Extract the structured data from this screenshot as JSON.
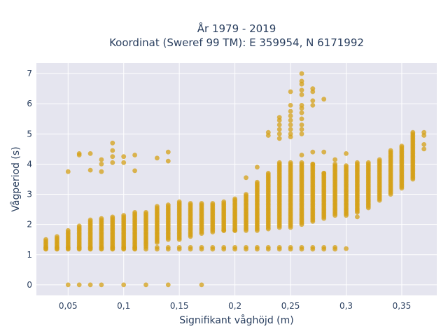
{
  "chart_data": {
    "type": "scatter",
    "title_line1": "År 1979 - 2019",
    "title_line2": "Koordinat (Sweref 99 TM): E 359954, N 6171992",
    "xlabel": "Signifikant våghöjd (m)",
    "ylabel": "Vågperiod (s)",
    "xlim": [
      0.0215,
      0.3815
    ],
    "ylim": [
      -0.35,
      7.35
    ],
    "x_ticks": [
      0.05,
      0.1,
      0.15,
      0.2,
      0.25,
      0.3,
      0.35
    ],
    "x_tick_labels": [
      "0,05",
      "0,1",
      "0,15",
      "0,2",
      "0,25",
      "0,3",
      "0,35"
    ],
    "y_ticks": [
      0,
      1,
      2,
      3,
      4,
      5,
      6,
      7
    ],
    "y_tick_labels": [
      "0",
      "1",
      "2",
      "3",
      "4",
      "5",
      "6",
      "7"
    ],
    "grid": true,
    "background": "#e5e5ef",
    "point_color": "#d4a017",
    "x_step": 0.01,
    "bands": [
      {
        "from": 0.03,
        "to": 0.29,
        "min": 1.15,
        "max": 1.25
      },
      {
        "from": 0.03,
        "to": 0.09,
        "min": 1.2,
        "max": 1.5,
        "x_offsets": [
          0,
          0.01,
          0.02,
          0.03,
          0.04,
          0.05,
          0.06
        ]
      }
    ],
    "columns": [
      {
        "x": 0.03,
        "min": 1.2,
        "max": 1.5
      },
      {
        "x": 0.04,
        "min": 1.2,
        "max": 1.6
      },
      {
        "x": 0.05,
        "min": 1.2,
        "max": 1.8
      },
      {
        "x": 0.06,
        "min": 1.2,
        "max": 1.95
      },
      {
        "x": 0.07,
        "min": 1.2,
        "max": 2.15
      },
      {
        "x": 0.08,
        "min": 1.2,
        "max": 2.2
      },
      {
        "x": 0.09,
        "min": 1.2,
        "max": 2.25
      },
      {
        "x": 0.1,
        "min": 1.2,
        "max": 2.3
      },
      {
        "x": 0.11,
        "min": 1.2,
        "max": 2.4
      },
      {
        "x": 0.12,
        "min": 1.3,
        "max": 2.4
      },
      {
        "x": 0.13,
        "min": 1.4,
        "max": 2.6
      },
      {
        "x": 0.14,
        "min": 1.5,
        "max": 2.65
      },
      {
        "x": 0.15,
        "min": 1.5,
        "max": 2.75
      },
      {
        "x": 0.16,
        "min": 1.6,
        "max": 2.7
      },
      {
        "x": 0.17,
        "min": 1.7,
        "max": 2.7
      },
      {
        "x": 0.18,
        "min": 1.75,
        "max": 2.7
      },
      {
        "x": 0.19,
        "min": 1.8,
        "max": 2.75
      },
      {
        "x": 0.2,
        "min": 1.8,
        "max": 2.85
      },
      {
        "x": 0.21,
        "min": 1.8,
        "max": 3.0
      },
      {
        "x": 0.22,
        "min": 1.8,
        "max": 3.4
      },
      {
        "x": 0.23,
        "min": 1.85,
        "max": 3.7
      },
      {
        "x": 0.24,
        "min": 1.9,
        "max": 4.05
      },
      {
        "x": 0.25,
        "min": 1.9,
        "max": 4.05
      },
      {
        "x": 0.26,
        "min": 2.0,
        "max": 4.05
      },
      {
        "x": 0.27,
        "min": 2.1,
        "max": 4.0
      },
      {
        "x": 0.28,
        "min": 2.2,
        "max": 3.7
      },
      {
        "x": 0.29,
        "min": 2.3,
        "max": 4.0
      },
      {
        "x": 0.3,
        "min": 2.3,
        "max": 3.95
      },
      {
        "x": 0.31,
        "min": 2.4,
        "max": 4.05
      },
      {
        "x": 0.32,
        "min": 2.55,
        "max": 4.05
      },
      {
        "x": 0.33,
        "min": 2.8,
        "max": 4.15
      },
      {
        "x": 0.34,
        "min": 3.0,
        "max": 4.45
      },
      {
        "x": 0.35,
        "min": 3.2,
        "max": 4.6
      },
      {
        "x": 0.36,
        "min": 3.5,
        "max": 5.05
      }
    ],
    "outliers": [
      [
        0.05,
        0
      ],
      [
        0.06,
        0
      ],
      [
        0.07,
        0
      ],
      [
        0.08,
        0
      ],
      [
        0.1,
        0
      ],
      [
        0.12,
        0
      ],
      [
        0.14,
        0
      ],
      [
        0.17,
        0
      ],
      [
        0.05,
        3.75
      ],
      [
        0.06,
        4.3
      ],
      [
        0.06,
        4.35
      ],
      [
        0.07,
        4.35
      ],
      [
        0.07,
        3.8
      ],
      [
        0.08,
        4.15
      ],
      [
        0.08,
        4.0
      ],
      [
        0.08,
        3.75
      ],
      [
        0.09,
        4.7
      ],
      [
        0.09,
        4.45
      ],
      [
        0.09,
        4.25
      ],
      [
        0.09,
        4.05
      ],
      [
        0.1,
        4.25
      ],
      [
        0.1,
        4.05
      ],
      [
        0.11,
        4.3
      ],
      [
        0.11,
        3.78
      ],
      [
        0.13,
        4.2
      ],
      [
        0.14,
        4.4
      ],
      [
        0.14,
        4.1
      ],
      [
        0.3,
        1.2
      ],
      [
        0.3,
        4.35
      ],
      [
        0.31,
        2.25
      ],
      [
        0.37,
        4.5
      ],
      [
        0.37,
        4.65
      ],
      [
        0.37,
        4.95
      ],
      [
        0.37,
        5.05
      ],
      [
        0.28,
        6.15
      ],
      [
        0.27,
        6.5
      ],
      [
        0.27,
        6.4
      ],
      [
        0.27,
        6.1
      ],
      [
        0.27,
        5.95
      ],
      [
        0.26,
        7.0
      ],
      [
        0.26,
        6.75
      ],
      [
        0.26,
        6.65
      ],
      [
        0.26,
        6.45
      ],
      [
        0.26,
        6.3
      ],
      [
        0.26,
        5.95
      ],
      [
        0.26,
        5.85
      ],
      [
        0.26,
        5.7
      ],
      [
        0.26,
        5.5
      ],
      [
        0.26,
        5.3
      ],
      [
        0.26,
        5.15
      ],
      [
        0.26,
        5.0
      ],
      [
        0.26,
        4.3
      ],
      [
        0.25,
        6.4
      ],
      [
        0.25,
        5.95
      ],
      [
        0.25,
        5.75
      ],
      [
        0.25,
        5.6
      ],
      [
        0.25,
        5.45
      ],
      [
        0.25,
        5.3
      ],
      [
        0.25,
        5.15
      ],
      [
        0.25,
        5.0
      ],
      [
        0.25,
        4.9
      ],
      [
        0.24,
        5.55
      ],
      [
        0.24,
        5.45
      ],
      [
        0.24,
        5.3
      ],
      [
        0.24,
        5.15
      ],
      [
        0.24,
        5.0
      ],
      [
        0.24,
        4.85
      ],
      [
        0.23,
        5.05
      ],
      [
        0.23,
        4.95
      ],
      [
        0.22,
        3.9
      ],
      [
        0.21,
        3.55
      ],
      [
        0.19,
        1.8
      ],
      [
        0.2,
        1.8
      ],
      [
        0.27,
        4.4
      ],
      [
        0.28,
        4.4
      ],
      [
        0.29,
        4.15
      ],
      [
        0.27,
        4.0
      ],
      [
        0.28,
        3.7
      ]
    ]
  }
}
